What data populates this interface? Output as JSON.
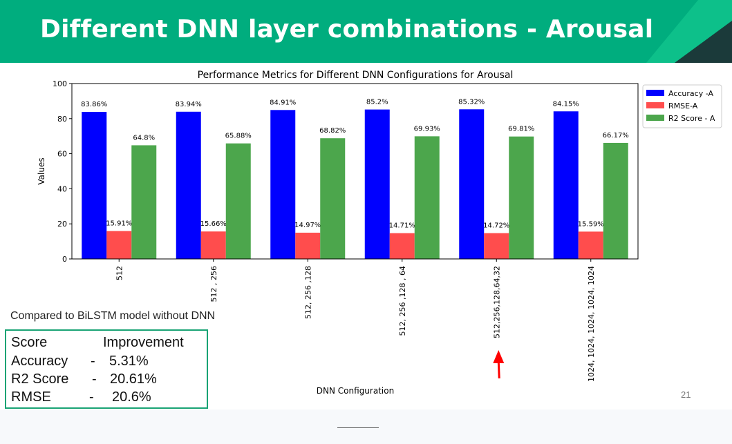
{
  "slide": {
    "title": "Different DNN layer combinations - Arousal",
    "page_number": "21",
    "accent_color": "#00ad7e"
  },
  "comparison": {
    "note": "Compared to BiLSTM model without DNN",
    "header": {
      "score": "Score",
      "improvement": "Improvement"
    },
    "rows": [
      {
        "metric": "Accuracy",
        "dash": "-",
        "value": "5.31%"
      },
      {
        "metric": "R2 Score",
        "dash": "-",
        "value": "20.61%"
      },
      {
        "metric": "RMSE",
        "dash": "-",
        "value": "20.6%"
      }
    ]
  },
  "chart_data": {
    "type": "bar",
    "title": "Performance Metrics for Different DNN Configurations for Arousal",
    "xlabel": "DNN Configuration",
    "ylabel": "Values",
    "ylim": [
      0,
      100
    ],
    "yticks": [
      0,
      20,
      40,
      60,
      80,
      100
    ],
    "categories": [
      "512",
      "512 , 256",
      "512, 256 ,128",
      "512, 256 ,128 , 64",
      "512,256,128,64,32",
      "1024, 1024, 1024, 1024, 1024"
    ],
    "series": [
      {
        "name": "Accuracy -A",
        "color": "#0000ff",
        "values": [
          83.86,
          83.94,
          84.91,
          85.2,
          85.32,
          84.15
        ],
        "labels": [
          "83.86%",
          "83.94%",
          "84.91%",
          "85.2%",
          "85.32%",
          "84.15%"
        ]
      },
      {
        "name": "RMSE-A",
        "color": "#ff4d4d",
        "values": [
          15.91,
          15.66,
          14.97,
          14.71,
          14.72,
          15.59
        ],
        "labels": [
          "15.91%",
          "15.66%",
          "14.97%",
          "14.71%",
          "14.72%",
          "15.59%"
        ]
      },
      {
        "name": "R2 Score - A",
        "color": "#4ca64c",
        "values": [
          64.8,
          65.88,
          68.82,
          69.93,
          69.81,
          66.17
        ],
        "labels": [
          "64.8%",
          "65.88%",
          "68.82%",
          "69.93%",
          "69.81%",
          "66.17%"
        ]
      }
    ],
    "legend_position": "outside-right-top",
    "grid": false,
    "annotation": {
      "type": "arrow",
      "color": "#ff0000",
      "target_category": "512,256,128,64,32"
    }
  }
}
